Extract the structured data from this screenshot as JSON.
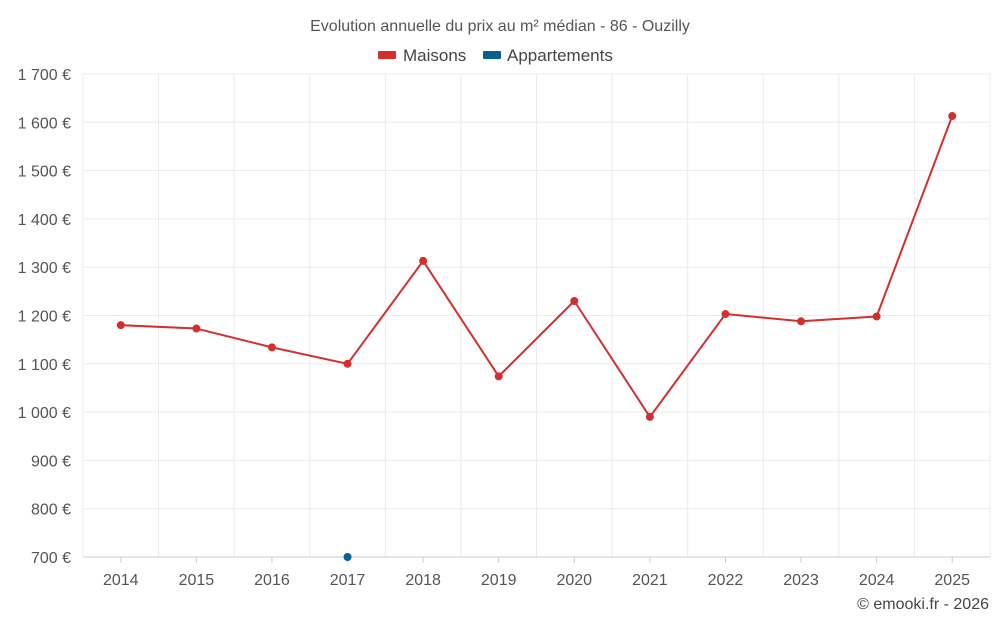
{
  "chart_data": {
    "type": "line",
    "title": "Evolution annuelle du prix au m² médian - 86 - Ouzilly",
    "categories": [
      "2014",
      "2015",
      "2016",
      "2017",
      "2018",
      "2019",
      "2020",
      "2021",
      "2022",
      "2023",
      "2024",
      "2025"
    ],
    "ylim": [
      700,
      1700
    ],
    "yticks": [
      700,
      800,
      900,
      1000,
      1100,
      1200,
      1300,
      1400,
      1500,
      1600,
      1700
    ],
    "ytick_labels": [
      "700 €",
      "800 €",
      "900 €",
      "1 000 €",
      "1 100 €",
      "1 200 €",
      "1 300 €",
      "1 400 €",
      "1 500 €",
      "1 600 €",
      "1 700 €"
    ],
    "series": [
      {
        "name": "Maisons",
        "color": "#d32f2f",
        "values": [
          1180,
          1173,
          1134,
          1100,
          1313,
          1074,
          1230,
          990,
          1203,
          1188,
          1198,
          1613
        ]
      },
      {
        "name": "Appartements",
        "color": "#0b5f93",
        "values": [
          null,
          null,
          null,
          700,
          null,
          null,
          null,
          null,
          null,
          null,
          null,
          null
        ]
      }
    ],
    "grid": true,
    "legend": "top-center",
    "credit": "© emooki.fr - 2026"
  }
}
